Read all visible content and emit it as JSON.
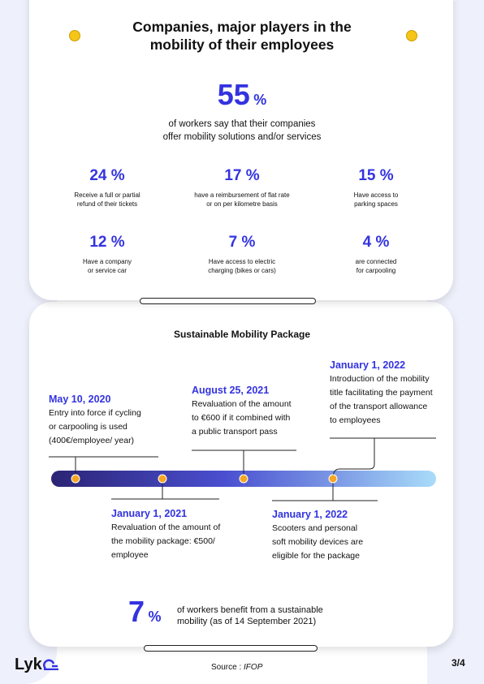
{
  "header": {
    "title_lines": [
      "Companies, major players in the",
      "mobility of their employees"
    ]
  },
  "headline": {
    "value": "55",
    "unit": "%",
    "lines": [
      "of workers say that their companies",
      "offer mobility solutions and/or services"
    ]
  },
  "stats": [
    {
      "value": "24",
      "unit": "%",
      "lines": [
        "Receive a full or partial",
        "refund of their tickets"
      ]
    },
    {
      "value": "17",
      "unit": "%",
      "lines": [
        "have a reimbursement of flat rate",
        "or on per kilometre basis"
      ]
    },
    {
      "value": "15",
      "unit": "%",
      "lines": [
        "Have access to",
        "parking spaces"
      ]
    },
    {
      "value": "12",
      "unit": "%",
      "lines": [
        "Have a company",
        "or service car"
      ]
    },
    {
      "value": "7",
      "unit": "%",
      "lines": [
        "Have access to electric",
        "charging (bikes or cars)"
      ]
    },
    {
      "value": "4",
      "unit": "%",
      "lines": [
        "are connected",
        "for carpooling"
      ]
    }
  ],
  "timeline": {
    "title": "Sustainable Mobility Package",
    "events": [
      {
        "date": "May 10, 2020",
        "lines": [
          "Entry into force if cycling",
          "or carpooling is used",
          "(400€/employee/ year)"
        ]
      },
      {
        "date": "January 1, 2021",
        "lines": [
          "Revaluation of the amount of",
          "the mobility package: €500/",
          "employee"
        ]
      },
      {
        "date": "August 25, 2021",
        "lines": [
          "Revaluation of the amount",
          "to €600 if it combined with",
          "a public transport pass"
        ]
      },
      {
        "date": "January 1, 2022",
        "lines": [
          "Introduction of the mobility",
          "title facilitating the payment",
          "of the transport allowance",
          "to employees"
        ]
      },
      {
        "date": "January 1, 2022",
        "lines": [
          "Scooters and personal",
          "soft mobility devices are",
          "eligible for the package"
        ]
      }
    ]
  },
  "footer_stat": {
    "value": "7",
    "unit": "%",
    "lines": [
      "of workers benefit from a sustainable",
      "mobility (as of 14 September 2021)"
    ]
  },
  "footer": {
    "logo": "Lyk",
    "source_label": "Source :",
    "source": "IFOP",
    "page": "3/4"
  }
}
